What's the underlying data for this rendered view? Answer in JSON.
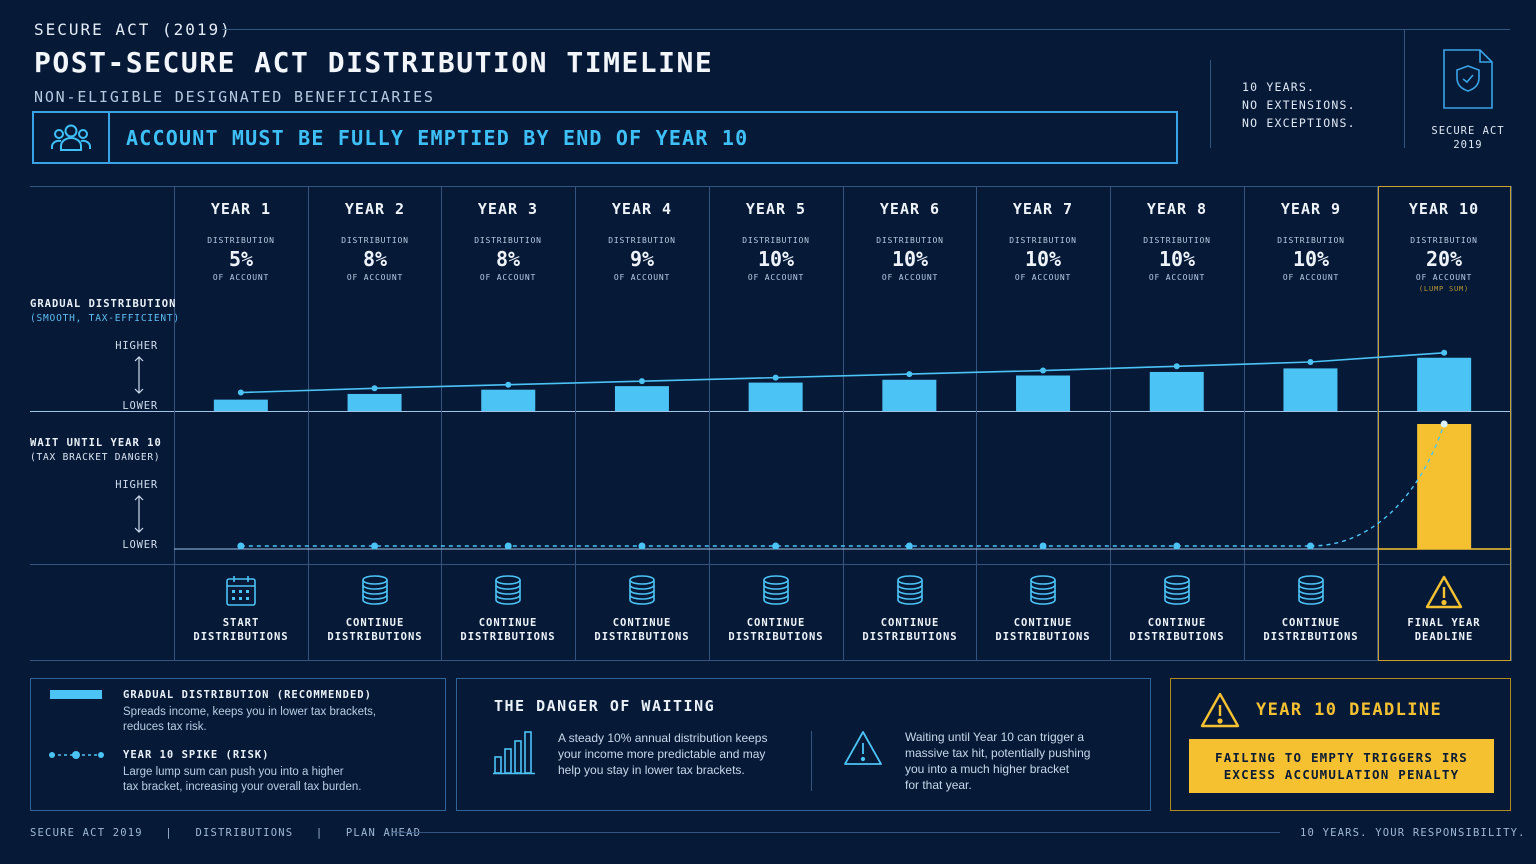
{
  "header": {
    "eyebrow": "SECURE ACT (2019)",
    "title": "POST-SECURE ACT DISTRIBUTION TIMELINE",
    "subtitle": "NON-ELIGIBLE DESIGNATED BENEFICIARIES",
    "banner": "ACCOUNT MUST BE FULLY EMPTIED BY END OF YEAR 10",
    "notes": [
      "10 YEARS.",
      "NO EXTENSIONS.",
      "NO EXCEPTIONS."
    ],
    "badge": [
      "SECURE ACT",
      "2019"
    ]
  },
  "years": [
    {
      "label": "YEAR 1",
      "dist": "DISTRIBUTION",
      "pct": "5%",
      "of": "OF ACCOUNT",
      "action": [
        "START",
        "DISTRIBUTIONS"
      ],
      "icon": "calendar-icon"
    },
    {
      "label": "YEAR 2",
      "dist": "DISTRIBUTION",
      "pct": "8%",
      "of": "OF ACCOUNT",
      "action": [
        "CONTINUE",
        "DISTRIBUTIONS"
      ],
      "icon": "coins-icon"
    },
    {
      "label": "YEAR 3",
      "dist": "DISTRIBUTION",
      "pct": "8%",
      "of": "OF ACCOUNT",
      "action": [
        "CONTINUE",
        "DISTRIBUTIONS"
      ],
      "icon": "coins-icon"
    },
    {
      "label": "YEAR 4",
      "dist": "DISTRIBUTION",
      "pct": "9%",
      "of": "OF ACCOUNT",
      "action": [
        "CONTINUE",
        "DISTRIBUTIONS"
      ],
      "icon": "coins-icon"
    },
    {
      "label": "YEAR 5",
      "dist": "DISTRIBUTION",
      "pct": "10%",
      "of": "OF ACCOUNT",
      "action": [
        "CONTINUE",
        "DISTRIBUTIONS"
      ],
      "icon": "coins-icon"
    },
    {
      "label": "YEAR 6",
      "dist": "DISTRIBUTION",
      "pct": "10%",
      "of": "OF ACCOUNT",
      "action": [
        "CONTINUE",
        "DISTRIBUTIONS"
      ],
      "icon": "coins-icon"
    },
    {
      "label": "YEAR 7",
      "dist": "DISTRIBUTION",
      "pct": "10%",
      "of": "OF ACCOUNT",
      "action": [
        "CONTINUE",
        "DISTRIBUTIONS"
      ],
      "icon": "coins-icon"
    },
    {
      "label": "YEAR 8",
      "dist": "DISTRIBUTION",
      "pct": "10%",
      "of": "OF ACCOUNT",
      "action": [
        "CONTINUE",
        "DISTRIBUTIONS"
      ],
      "icon": "coins-icon"
    },
    {
      "label": "YEAR 9",
      "dist": "DISTRIBUTION",
      "pct": "10%",
      "of": "OF ACCOUNT",
      "action": [
        "CONTINUE",
        "DISTRIBUTIONS"
      ],
      "icon": "coins-icon"
    },
    {
      "label": "YEAR 10",
      "dist": "DISTRIBUTION",
      "pct": "20%",
      "of": "OF ACCOUNT",
      "note": "(LUMP SUM)",
      "action": [
        "FINAL YEAR",
        "DEADLINE"
      ],
      "icon": "warning-icon"
    }
  ],
  "gradual_row": {
    "title": "GRADUAL DISTRIBUTION",
    "sub": "(SMOOTH, TAX-EFFICIENT)",
    "higher": "HIGHER",
    "lower": "LOWER"
  },
  "spike_row": {
    "title": "WAIT UNTIL YEAR 10",
    "sub": "(TAX BRACKET DANGER)",
    "higher": "HIGHER",
    "lower": "LOWER"
  },
  "chart_data": {
    "type": "bar",
    "categories": [
      "YEAR 1",
      "YEAR 2",
      "YEAR 3",
      "YEAR 4",
      "YEAR 5",
      "YEAR 6",
      "YEAR 7",
      "YEAR 8",
      "YEAR 9",
      "YEAR 10"
    ],
    "series": [
      {
        "name": "GRADUAL DISTRIBUTION (RECOMMENDED)",
        "values": [
          5,
          8,
          8,
          9,
          10,
          10,
          10,
          10,
          10,
          20
        ]
      },
      {
        "name": "YEAR 10 SPIKE (RISK)",
        "values": [
          0,
          0,
          0,
          0,
          0,
          0,
          0,
          0,
          0,
          100
        ]
      }
    ],
    "gradual_bar_levels": [
      0.16,
      0.24,
      0.3,
      0.35,
      0.4,
      0.44,
      0.5,
      0.55,
      0.6,
      0.75
    ],
    "gradual_line_levels": [
      0.26,
      0.32,
      0.37,
      0.42,
      0.47,
      0.52,
      0.57,
      0.63,
      0.69,
      0.82
    ],
    "colors": {
      "gradual": "#4cc3f5",
      "spike": "#f5c131",
      "accent": "#3aa3e6"
    }
  },
  "legend": {
    "gradual_title": "GRADUAL DISTRIBUTION (RECOMMENDED)",
    "gradual_desc": [
      "Spreads income, keeps you in lower tax brackets,",
      "reduces tax risk."
    ],
    "spike_title": "YEAR 10 SPIKE (RISK)",
    "spike_desc": [
      "Large lump sum can push you into a higher",
      "tax bracket, increasing your overall tax burden."
    ]
  },
  "danger": {
    "title": "THE DANGER OF WAITING",
    "left": [
      "A steady 10% annual distribution keeps",
      "your income more predictable and may",
      "help you stay in lower tax brackets."
    ],
    "right": [
      "Waiting until Year 10 can trigger a",
      "massive tax hit, potentially pushing",
      "you into a much higher bracket",
      "for that year."
    ]
  },
  "deadline": {
    "title": "YEAR 10 DEADLINE",
    "box": [
      "FAILING TO EMPTY TRIGGERS IRS",
      "EXCESS ACCUMULATION PENALTY"
    ]
  },
  "footer": {
    "left": "SECURE ACT 2019   |   DISTRIBUTIONS   |   PLAN AHEAD",
    "right": "10 YEARS. YOUR RESPONSIBILITY."
  }
}
